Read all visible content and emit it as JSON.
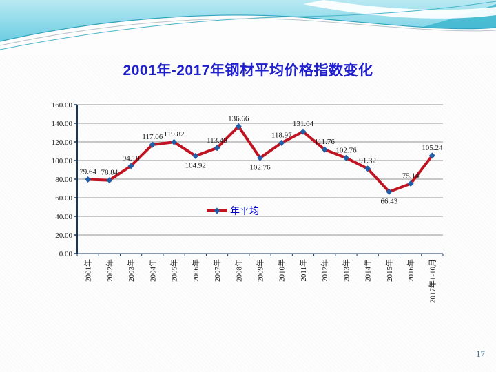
{
  "slide": {
    "title": "2001年-2017年钢材平均价格指数变化",
    "page_number": "17"
  },
  "legend": {
    "label": "年平均"
  },
  "colors": {
    "title_text": "#1f1fcc",
    "series_line": "#bf1523",
    "marker_fill": "#1f5fa8",
    "legend_text": "#0000cc",
    "axis_line": "#17375e",
    "gridline": "#6e6e6e",
    "label_text": "#1a1a1a",
    "page_number_text": "#44708c",
    "banner_light": "#b9e9f3",
    "banner_deep": "#55c5db"
  },
  "chart_data": {
    "type": "line",
    "title": "2001年-2017年钢材平均价格指数变化",
    "categories": [
      "2001年",
      "2002年",
      "2003年",
      "2004年",
      "2005年",
      "2006年",
      "2007年",
      "2008年",
      "2009年",
      "2010年",
      "2011年",
      "2012年",
      "2013年",
      "2014年",
      "2015年",
      "2016年",
      "2017年1-10月"
    ],
    "series": [
      {
        "name": "年平均",
        "values": [
          79.64,
          78.84,
          94.18,
          117.06,
          119.82,
          104.92,
          113.48,
          136.66,
          102.76,
          118.97,
          131.04,
          111.76,
          102.76,
          91.32,
          66.43,
          75.14,
          105.24
        ],
        "label_positions": [
          "above",
          "above",
          "above",
          "above",
          "above",
          "below",
          "above",
          "above",
          "below",
          "above",
          "above",
          "above",
          "above",
          "above",
          "below",
          "above",
          "above"
        ]
      }
    ],
    "ylim": [
      0,
      160
    ],
    "ytick_step": 20,
    "ytick_labels": [
      "0.00",
      "20.00",
      "40.00",
      "60.00",
      "80.00",
      "100.00",
      "120.00",
      "140.00",
      "160.00"
    ],
    "grid": true,
    "legend_position": "inside-center",
    "marker": "diamond",
    "xlabel": "",
    "ylabel": ""
  }
}
